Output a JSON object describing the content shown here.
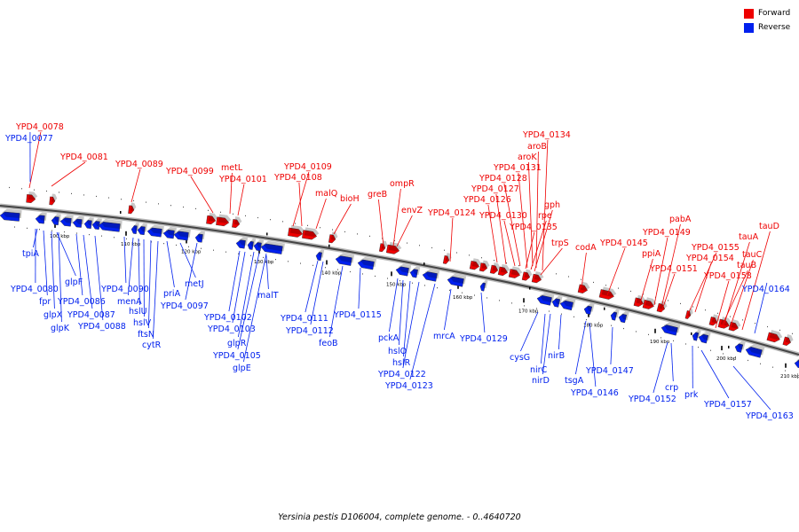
{
  "colors": {
    "forward": "#ee0000",
    "reverse": "#0020ee",
    "backbone": "#808080"
  },
  "legend": [
    {
      "label": "Forward",
      "strand": "forward"
    },
    {
      "label": "Reverse",
      "strand": "reverse"
    }
  ],
  "caption": "Yersinia pestis D106004, complete genome. - 0..4640720",
  "ticks": [
    "100 kbp",
    "110 kbp",
    "120 kbp",
    "130 kbp",
    "140 kbp",
    "150 kbp",
    "160 kbp",
    "170 kbp",
    "180 kbp",
    "190 kbp",
    "200 kbp",
    "210 kbp"
  ],
  "forward_genes": [
    "YPD4_0078",
    "YPD4_0081",
    "YPD4_0089",
    "YPD4_0099",
    "metL",
    "YPD4_0101",
    "YPD4_0109",
    "YPD4_0108",
    "malQ",
    "bioH",
    "greB",
    "ompR",
    "envZ",
    "YPD4_0124",
    "YPD4_0134",
    "aroB",
    "aroK",
    "YPD4_0131",
    "YPD4_0128",
    "YPD4_0127",
    "YPD4_0126",
    "YPD4_0130",
    "gph",
    "rpe",
    "YPD4_0135",
    "trpS",
    "codA",
    "YPD4_0145",
    "pabA",
    "YPD4_0149",
    "ppiA",
    "YPD4_0151",
    "YPD4_0155",
    "YPD4_0154",
    "tauD",
    "tauA",
    "tauC",
    "tauB",
    "YPD4_0158"
  ],
  "reverse_genes": [
    "YPD4_0077",
    "tpiA",
    "YPD4_0080",
    "fpr",
    "glpF",
    "glpX",
    "glpK",
    "YPD4_0086",
    "YPD4_0087",
    "YPD4_0088",
    "menA",
    "YPD4_0090",
    "hslU",
    "hslV",
    "ftsN",
    "cytR",
    "priA",
    "metJ",
    "YPD4_0097",
    "YPD4_0102",
    "YPD4_0103",
    "glpR",
    "YPD4_0105",
    "glpE",
    "malT",
    "YPD4_0111",
    "YPD4_0112",
    "feoB",
    "YPD4_0115",
    "pckA",
    "hslO",
    "hslR",
    "YPD4_0122",
    "YPD4_0123",
    "mrcA",
    "YPD4_0129",
    "cysG",
    "nirC",
    "nirD",
    "nirB",
    "tsgA",
    "YPD4_0146",
    "YPD4_0147",
    "YPD4_0152",
    "crp",
    "prk",
    "YPD4_0157",
    "YPD4_0163",
    "YPD4_0164"
  ]
}
